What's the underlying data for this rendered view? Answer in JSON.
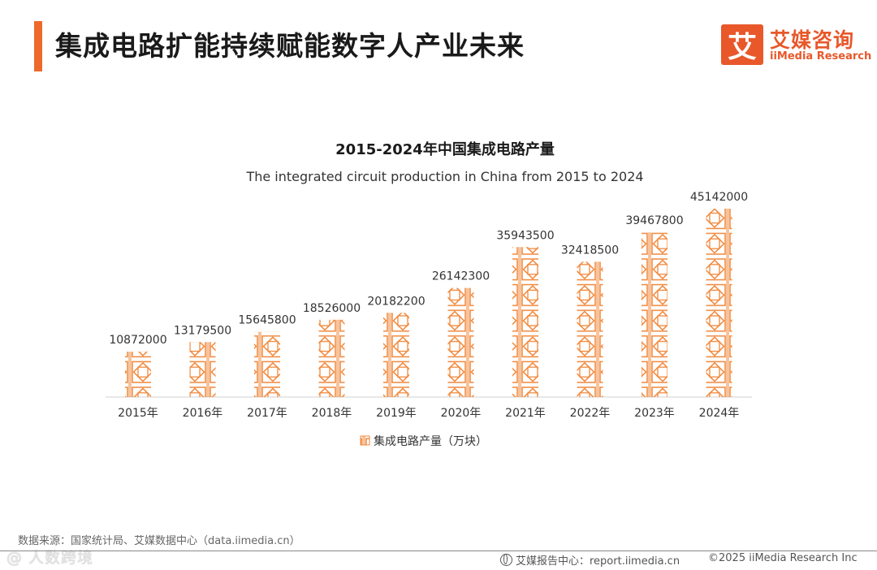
{
  "header": {
    "title": "集成电路扩能持续赋能数字人产业未来"
  },
  "logo": {
    "glyph": "艾",
    "cn": "艾媒咨询",
    "en": "iiMedia Research"
  },
  "colors": {
    "accent": "#ed6a2b",
    "brand": "#e8582a",
    "bar_pattern": "#f0873a"
  },
  "chart_data": {
    "type": "bar",
    "title": "2015-2024年中国集成电路产量",
    "subtitle": "The integrated circuit production in China from 2015 to 2024",
    "categories": [
      "2015年",
      "2016年",
      "2017年",
      "2018年",
      "2019年",
      "2020年",
      "2021年",
      "2022年",
      "2023年",
      "2024年"
    ],
    "series": [
      {
        "name": "集成电路产量（万块）",
        "values": [
          10872000,
          13179500,
          15645800,
          18526000,
          20182200,
          26142300,
          35943500,
          32418500,
          39467800,
          45142000
        ]
      }
    ],
    "ylim": [
      0,
      50000000
    ],
    "grid": false,
    "legend": "bottom",
    "data_labels": true
  },
  "footer": {
    "source": "数据来源：国家统计局、艾媒数据中心（data.iimedia.cn）",
    "report_site": "艾媒报告中心：report.iimedia.cn",
    "copyright": "©2025  iiMedia Research  Inc",
    "watermark": "@ 人数跨境"
  }
}
